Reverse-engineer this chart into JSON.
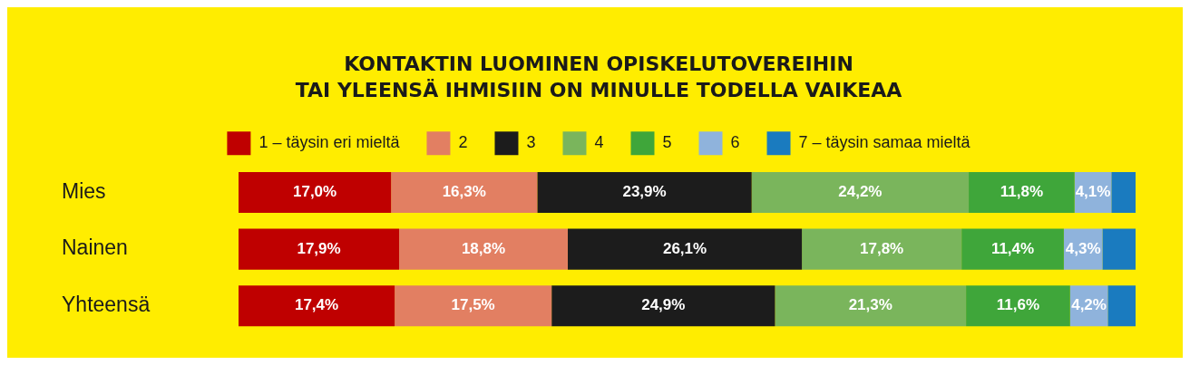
{
  "chart_data": {
    "type": "bar",
    "orientation": "horizontal",
    "stacked": true,
    "title": "KONTAKTIN LUOMINEN OPISKELUTOVEREIHIN\nTAI YLEENSÄ IHMISIIN ON MINULLE TODELLA VAIKEAA",
    "categories": [
      "Mies",
      "Nainen",
      "Yhteensä"
    ],
    "xlim": [
      0,
      100
    ],
    "legend": "top",
    "tick_labels": "y",
    "series": [
      {
        "name": "1 – täysin eri mieltä",
        "color": "#bf0000",
        "values": [
          17.0,
          17.9,
          17.4
        ],
        "value_labels": [
          "17,0%",
          "17,9%",
          "17,4%"
        ]
      },
      {
        "name": "2",
        "color": "#e27f62",
        "values": [
          16.3,
          18.8,
          17.5
        ],
        "value_labels": [
          "16,3%",
          "18,8%",
          "17,5%"
        ]
      },
      {
        "name": "3",
        "color": "#1c1c1c",
        "values": [
          23.9,
          26.1,
          24.9
        ],
        "value_labels": [
          "23,9%",
          "26,1%",
          "24,9%"
        ]
      },
      {
        "name": "4",
        "color": "#7ab55c",
        "values": [
          24.2,
          17.8,
          21.3
        ],
        "value_labels": [
          "24,2%",
          "17,8%",
          "21,3%"
        ]
      },
      {
        "name": "5",
        "color": "#3fa63a",
        "values": [
          11.8,
          11.4,
          11.6
        ],
        "value_labels": [
          "11,8%",
          "11,4%",
          "11,6%"
        ]
      },
      {
        "name": "6",
        "color": "#8fb3dc",
        "values": [
          4.1,
          4.3,
          4.2
        ],
        "value_labels": [
          "4,1%",
          "4,3%",
          "4,2%"
        ]
      },
      {
        "name": "7 – täysin samaa mieltä",
        "color": "#1a7bbf",
        "values": [
          2.7,
          3.7,
          3.1
        ],
        "value_labels": [
          null,
          null,
          null
        ]
      }
    ]
  }
}
